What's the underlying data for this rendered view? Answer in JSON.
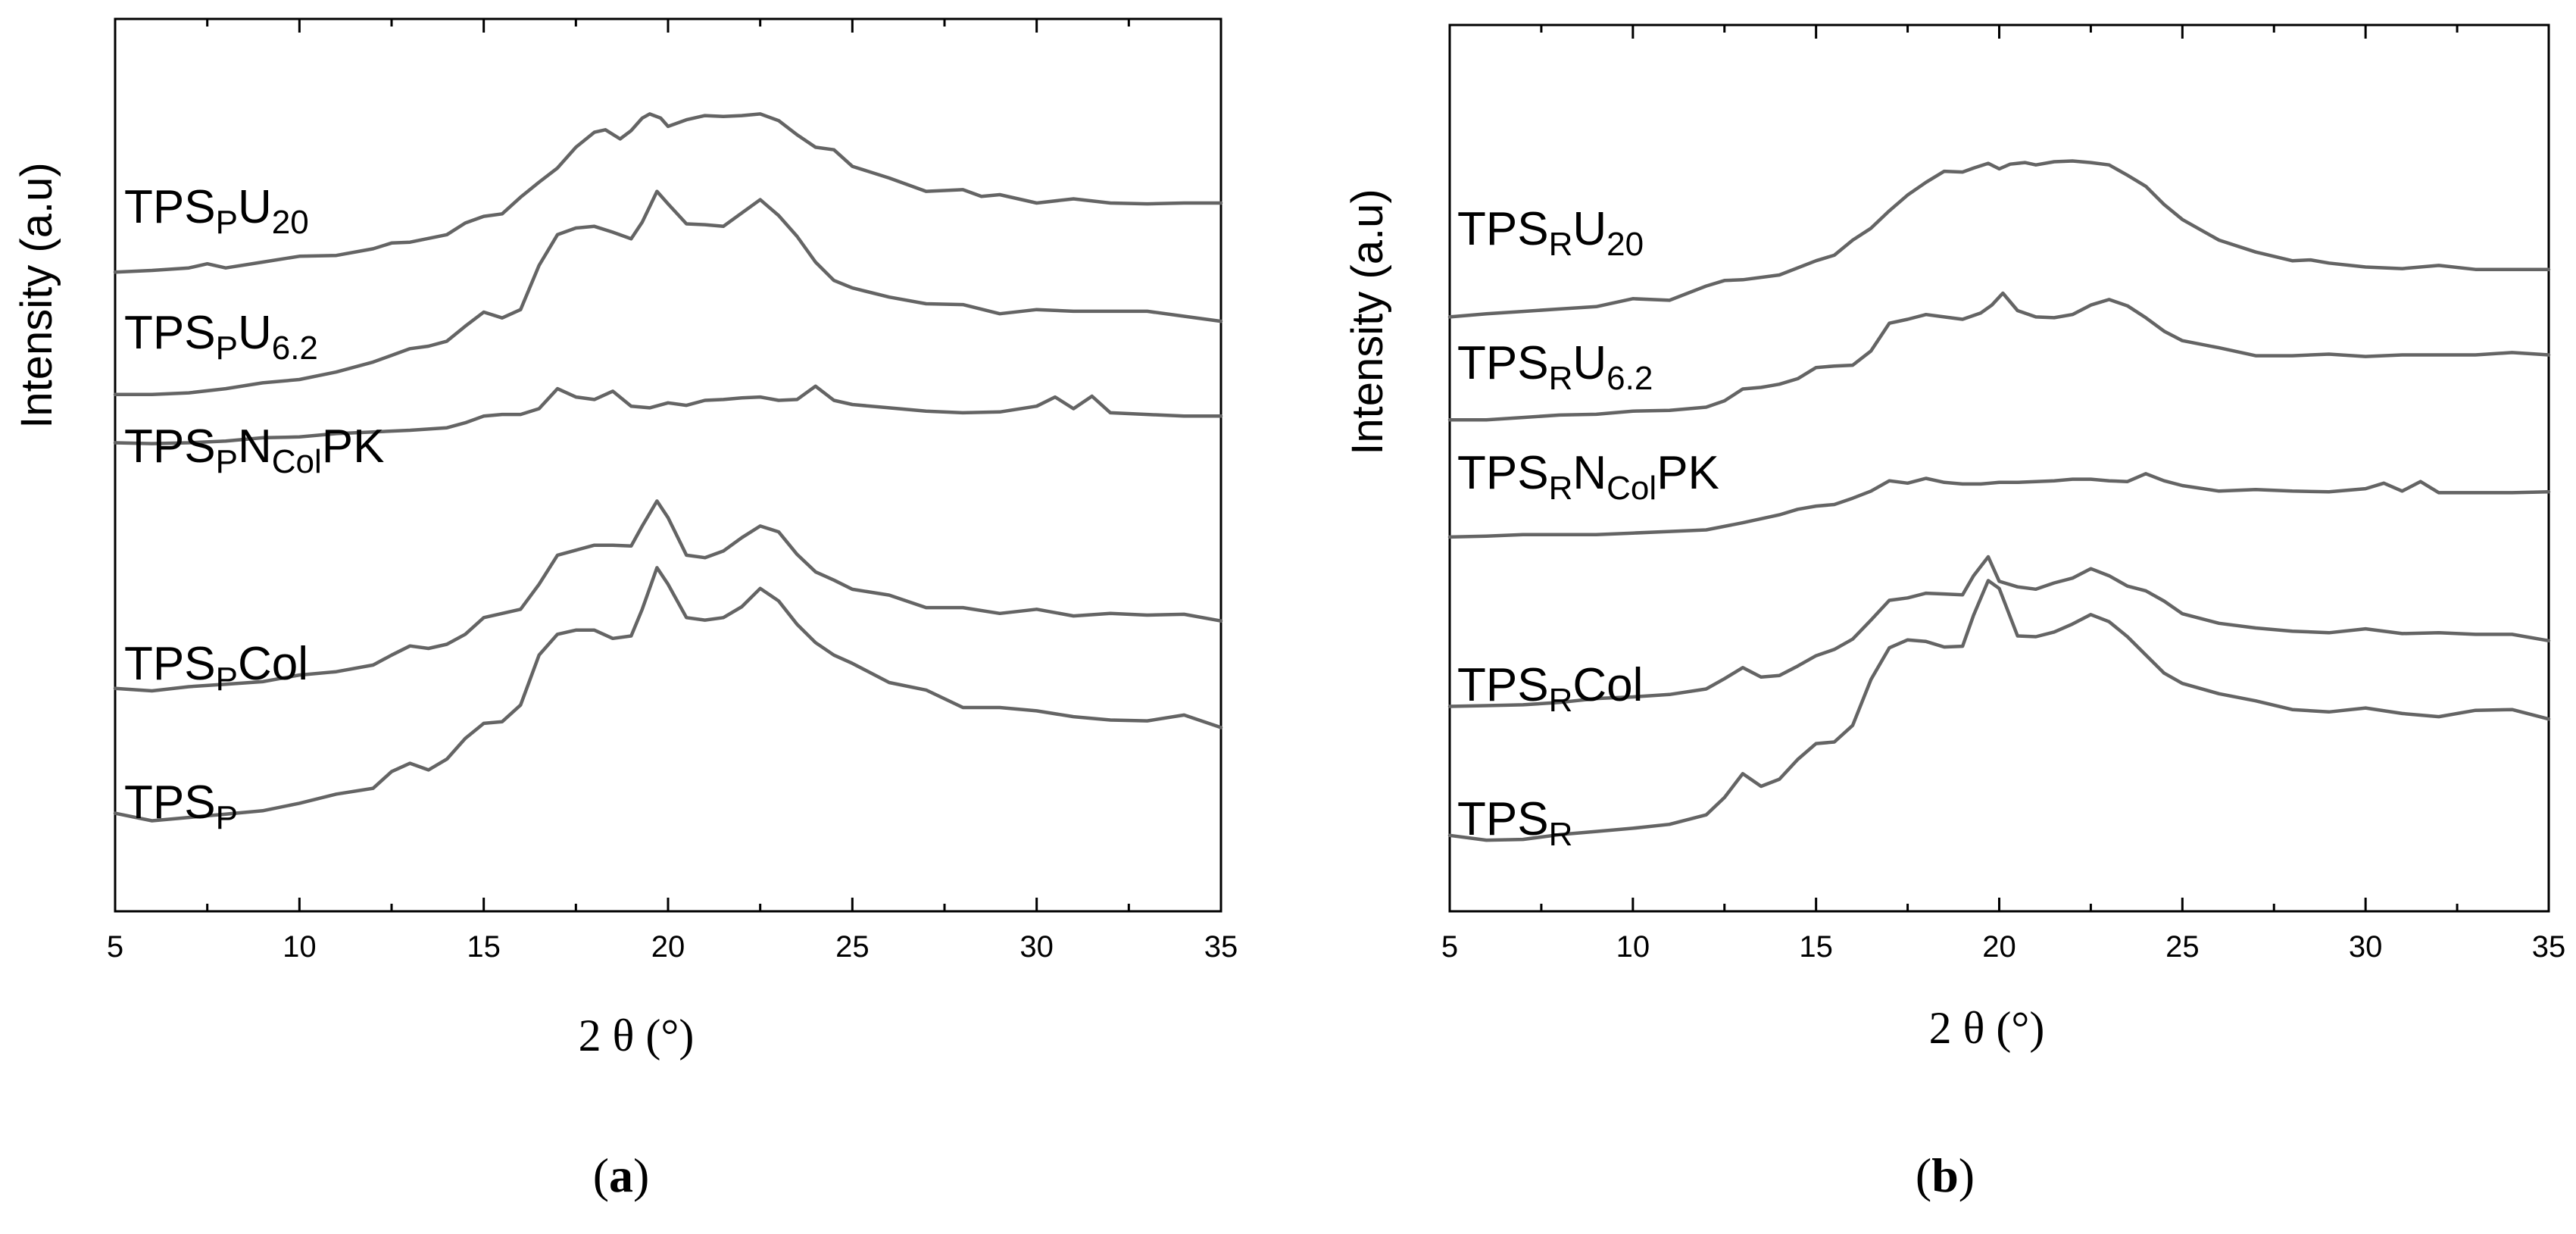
{
  "figure": {
    "panels": [
      "(a)",
      "(b)"
    ]
  },
  "chart_data": [
    {
      "type": "line",
      "panel_label": "(a)",
      "panel_letter": "a",
      "xlabel": "2 θ (°)",
      "ylabel": "Intensity (a.u)",
      "xlim": [
        5,
        35
      ],
      "ylim": [
        0,
        100
      ],
      "xticks": [
        5,
        10,
        15,
        20,
        25,
        30,
        35
      ],
      "series": [
        {
          "name": "TPSPU20",
          "base": "TPS",
          "sub1": "P",
          "mid": "U",
          "sub2": "20",
          "tail": "",
          "x": [
            5,
            6,
            7,
            7.5,
            8,
            9,
            10,
            11,
            12,
            12.5,
            13,
            14,
            14.5,
            15,
            15.5,
            16,
            16.5,
            17,
            17.5,
            18,
            18.3,
            18.7,
            19,
            19.3,
            19.5,
            19.8,
            20,
            20.5,
            21,
            21.5,
            22,
            22.5,
            23,
            23.5,
            24,
            24.5,
            25,
            26,
            27,
            28,
            28.5,
            29,
            30,
            31,
            32,
            33,
            34,
            35
          ],
          "y": [
            71.5,
            71.7,
            72,
            72.5,
            72,
            72.7,
            73.4,
            73.5,
            74.3,
            75,
            75.1,
            76,
            77.4,
            78.2,
            78.5,
            80.5,
            82.3,
            84,
            86.5,
            88.3,
            88.6,
            87.5,
            88.5,
            90,
            90.5,
            90,
            89,
            89.8,
            90.3,
            90.2,
            90.3,
            90.5,
            89.7,
            88,
            86.5,
            86.2,
            84.2,
            82.8,
            81.2,
            81.4,
            80.6,
            80.8,
            79.8,
            80.3,
            79.8,
            79.7,
            79.8,
            79.8
          ]
        },
        {
          "name": "TPSPU6.2",
          "base": "TPS",
          "sub1": "P",
          "mid": "U",
          "sub2": "6.2",
          "tail": "",
          "x": [
            5,
            6,
            7,
            8,
            9,
            10,
            11,
            12,
            12.5,
            13,
            13.5,
            14,
            14.5,
            15,
            15.5,
            16,
            16.5,
            17,
            17.5,
            18,
            18.5,
            19,
            19.3,
            19.7,
            20,
            20.5,
            21,
            21.5,
            22,
            22.5,
            23,
            23.5,
            24,
            24.5,
            25,
            26,
            27,
            28,
            29,
            30,
            31,
            32,
            33,
            34,
            35
          ],
          "y": [
            56.8,
            56.8,
            57,
            57.5,
            58.2,
            58.6,
            59.5,
            60.7,
            61.5,
            62.3,
            62.6,
            63.2,
            65,
            66.7,
            66,
            67,
            72.3,
            76,
            76.8,
            77,
            76.3,
            75.5,
            77.5,
            81.2,
            79.7,
            77.3,
            77.2,
            77,
            78.6,
            80.2,
            78.3,
            75.8,
            72.7,
            70.5,
            69.6,
            68.5,
            67.7,
            67.6,
            66.5,
            67,
            66.8,
            66.8,
            66.8,
            66.2,
            65.6
          ]
        },
        {
          "name": "TPSPNColPK",
          "base": "TPS",
          "sub1": "P",
          "mid": "N",
          "sub2": "Col",
          "tail": "PK",
          "x": [
            5,
            6,
            7,
            8,
            9,
            10,
            11,
            12,
            13,
            14,
            14.5,
            15,
            15.5,
            16,
            16.5,
            17,
            17.5,
            18,
            18.5,
            19,
            19.5,
            20,
            20.5,
            21,
            21.5,
            22,
            22.5,
            23,
            23.5,
            24,
            24.5,
            25,
            26,
            27,
            28,
            29,
            30,
            30.5,
            31,
            31.5,
            32,
            33,
            34,
            35
          ],
          "y": [
            51,
            50.9,
            51,
            51.2,
            51.6,
            51.7,
            52.1,
            52.3,
            52.5,
            52.8,
            53.4,
            54.2,
            54.4,
            54.4,
            55.1,
            57.5,
            56.5,
            56.2,
            57.2,
            55.4,
            55.2,
            55.8,
            55.5,
            56.1,
            56.2,
            56.4,
            56.5,
            56.1,
            56.2,
            57.8,
            56.1,
            55.6,
            55.2,
            54.8,
            54.6,
            54.7,
            55.4,
            56.5,
            55.1,
            56.6,
            54.6,
            54.4,
            54.2,
            54.2
          ]
        },
        {
          "name": "TPSPCol",
          "base": "TPS",
          "sub1": "P",
          "mid": "Col",
          "sub2": "",
          "tail": "",
          "x": [
            5,
            6,
            7,
            8,
            9,
            10,
            11,
            12,
            12.5,
            13,
            13.5,
            14,
            14.5,
            15,
            15.5,
            16,
            16.5,
            17,
            17.5,
            18,
            18.5,
            19,
            19.3,
            19.7,
            20,
            20.5,
            21,
            21.5,
            22,
            22.5,
            23,
            23.5,
            24,
            24.5,
            25,
            26,
            27,
            28,
            29,
            30,
            31,
            32,
            33,
            34,
            35
          ],
          "y": [
            21.5,
            21.2,
            21.7,
            22,
            22.3,
            23.1,
            23.5,
            24.3,
            25.5,
            26.6,
            26.3,
            26.8,
            28,
            30,
            30.5,
            31,
            34,
            37.5,
            38.1,
            38.7,
            38.7,
            38.6,
            41,
            44,
            42,
            37.5,
            37.2,
            38,
            39.6,
            41,
            40.3,
            37.6,
            35.5,
            34.5,
            33.4,
            32.7,
            31.2,
            31.2,
            30.5,
            31,
            30.2,
            30.5,
            30.3,
            30.4,
            29.6
          ]
        },
        {
          "name": "TPSP",
          "base": "TPS",
          "sub1": "P",
          "mid": "",
          "sub2": "",
          "tail": "",
          "x": [
            5,
            6,
            7,
            8,
            9,
            10,
            11,
            12,
            12.5,
            13,
            13.5,
            14,
            14.5,
            15,
            15.5,
            16,
            16.5,
            17,
            17.5,
            18,
            18.5,
            19,
            19.3,
            19.7,
            20,
            20.5,
            21,
            21.5,
            22,
            22.5,
            23,
            23.5,
            24,
            24.5,
            25,
            26,
            27,
            28,
            29,
            30,
            31,
            32,
            33,
            34,
            35
          ],
          "y": [
            6.5,
            5.6,
            6,
            6.4,
            6.8,
            7.7,
            8.8,
            9.5,
            11.5,
            12.5,
            11.7,
            13,
            15.5,
            17.3,
            17.5,
            19.5,
            25.5,
            28,
            28.5,
            28.5,
            27.5,
            27.8,
            31,
            36,
            34,
            30,
            29.7,
            30,
            31.3,
            33.5,
            32,
            29.2,
            27,
            25.5,
            24.5,
            22.2,
            21.3,
            19.2,
            19.2,
            18.8,
            18.1,
            17.7,
            17.6,
            18.3,
            16.8
          ]
        }
      ]
    },
    {
      "type": "line",
      "panel_label": "(b)",
      "panel_letter": "b",
      "xlabel": "2 θ (°)",
      "ylabel": "Intensity (a.u)",
      "xlim": [
        5,
        35
      ],
      "ylim": [
        0,
        100
      ],
      "xticks": [
        5,
        10,
        15,
        20,
        25,
        30,
        35
      ],
      "series": [
        {
          "name": "TPSRU20",
          "base": "TPS",
          "sub1": "R",
          "mid": "U",
          "sub2": "20",
          "tail": "",
          "x": [
            5,
            6,
            7,
            8,
            9,
            10,
            11,
            12,
            12.5,
            13,
            14,
            15,
            15.5,
            16,
            16.5,
            17,
            17.5,
            18,
            18.5,
            19,
            19.3,
            19.7,
            20,
            20.3,
            20.7,
            21,
            21.5,
            22,
            22.5,
            23,
            23.5,
            24,
            24.5,
            25,
            26,
            27,
            28,
            28.5,
            29,
            30,
            31,
            32,
            33,
            34,
            35
          ],
          "y": [
            70.3,
            70.7,
            71,
            71.3,
            71.6,
            72.6,
            72.4,
            74.2,
            74.9,
            75,
            75.6,
            77.4,
            78.1,
            80,
            81.5,
            83.7,
            85.7,
            87.3,
            88.7,
            88.6,
            89.1,
            89.7,
            89,
            89.6,
            89.8,
            89.5,
            89.9,
            90,
            89.8,
            89.5,
            88.2,
            86.8,
            84.5,
            82.6,
            80,
            78.5,
            77.4,
            77.5,
            77.1,
            76.6,
            76.4,
            76.8,
            76.3,
            76.3,
            76.3
          ]
        },
        {
          "name": "TPSRU6.2",
          "base": "TPS",
          "sub1": "R",
          "mid": "U",
          "sub2": "6.2",
          "tail": "",
          "x": [
            5,
            6,
            7,
            8,
            9,
            10,
            11,
            12,
            12.5,
            13,
            13.5,
            14,
            14.5,
            15,
            15.5,
            16,
            16.5,
            17,
            17.5,
            18,
            18.5,
            19,
            19.5,
            19.8,
            20.1,
            20.5,
            21,
            21.5,
            22,
            22.5,
            23,
            23.5,
            24,
            24.5,
            25,
            26,
            27,
            28,
            29,
            30,
            31,
            32,
            33,
            34,
            35
          ],
          "y": [
            57.3,
            57.3,
            57.6,
            57.9,
            58,
            58.4,
            58.5,
            58.9,
            59.7,
            61.2,
            61.4,
            61.8,
            62.5,
            63.9,
            64.1,
            64.2,
            66,
            69.5,
            70,
            70.6,
            70.3,
            70,
            70.8,
            71.8,
            73.3,
            71.1,
            70.3,
            70.2,
            70.6,
            71.8,
            72.5,
            71.7,
            70.2,
            68.5,
            67.3,
            66.4,
            65.4,
            65.4,
            65.6,
            65.3,
            65.5,
            65.5,
            65.5,
            65.8,
            65.5
          ]
        },
        {
          "name": "TPSRNColPK",
          "base": "TPS",
          "sub1": "R",
          "mid": "N",
          "sub2": "Col",
          "tail": "PK",
          "x": [
            5,
            6,
            7,
            8,
            9,
            10,
            11,
            12,
            13,
            14,
            14.5,
            15,
            15.5,
            16,
            16.5,
            17,
            17.5,
            18,
            18.5,
            19,
            19.5,
            20,
            20.5,
            21,
            21.5,
            22,
            22.5,
            23,
            23.5,
            24,
            24.5,
            25,
            26,
            27,
            28,
            29,
            30,
            30.5,
            31,
            31.5,
            32,
            33,
            34,
            35
          ],
          "y": [
            42.5,
            42.6,
            42.8,
            42.8,
            42.8,
            43,
            43.2,
            43.4,
            44.3,
            45.3,
            46,
            46.4,
            46.6,
            47.4,
            48.3,
            49.6,
            49.3,
            49.9,
            49.4,
            49.2,
            49.2,
            49.4,
            49.4,
            49.5,
            49.6,
            49.8,
            49.8,
            49.6,
            49.5,
            50.5,
            49.6,
            49,
            48.3,
            48.5,
            48.3,
            48.2,
            48.6,
            49.3,
            48.3,
            49.5,
            48.1,
            48.1,
            48.1,
            48.2
          ]
        },
        {
          "name": "TPSRCol",
          "base": "TPS",
          "sub1": "R",
          "mid": "Col",
          "sub2": "",
          "tail": "",
          "x": [
            5,
            6,
            7,
            8,
            9,
            10,
            11,
            12,
            12.5,
            13,
            13.5,
            14,
            14.5,
            15,
            15.5,
            16,
            16.5,
            17,
            17.5,
            18,
            18.5,
            19,
            19.3,
            19.7,
            20,
            20.5,
            21,
            21.5,
            22,
            22.5,
            23,
            23.5,
            24,
            24.5,
            25,
            26,
            27,
            28,
            29,
            30,
            31,
            32,
            33,
            34,
            35
          ],
          "y": [
            21.1,
            21.2,
            21.3,
            21.6,
            22.1,
            22.3,
            22.6,
            23.3,
            24.6,
            26,
            24.8,
            25,
            26.2,
            27.5,
            28.3,
            29.6,
            32,
            34.5,
            34.8,
            35.4,
            35.3,
            35.2,
            37.6,
            40,
            36.9,
            36.2,
            35.9,
            36.7,
            37.3,
            38.5,
            37.6,
            36.3,
            35.7,
            34.4,
            32.8,
            31.6,
            31,
            30.6,
            30.4,
            30.9,
            30.3,
            30.4,
            30.2,
            30.2,
            29.4
          ]
        },
        {
          "name": "TPSR",
          "base": "TPS",
          "sub1": "R",
          "mid": "",
          "sub2": "",
          "tail": "",
          "x": [
            5,
            6,
            7,
            8,
            9,
            10,
            11,
            12,
            12.5,
            13,
            13.5,
            14,
            14.5,
            15,
            15.5,
            16,
            16.5,
            17,
            17.5,
            18,
            18.5,
            19,
            19.3,
            19.7,
            20,
            20.5,
            21,
            21.5,
            22,
            22.5,
            23,
            23.5,
            24,
            24.5,
            25,
            26,
            27,
            28,
            29,
            30,
            31,
            32,
            33,
            34,
            35
          ],
          "y": [
            4.8,
            4.2,
            4.3,
            4.9,
            5.3,
            5.7,
            6.2,
            7.4,
            9.6,
            12.6,
            11,
            11.9,
            14.4,
            16.4,
            16.6,
            18.7,
            24.5,
            28.5,
            29.5,
            29.3,
            28.6,
            28.7,
            32.6,
            37,
            36,
            30,
            29.9,
            30.5,
            31.5,
            32.7,
            31.8,
            29.9,
            27.6,
            25.3,
            24,
            22.7,
            21.8,
            20.7,
            20.4,
            20.9,
            20.2,
            19.8,
            20.6,
            20.7,
            19.5
          ]
        }
      ]
    }
  ]
}
